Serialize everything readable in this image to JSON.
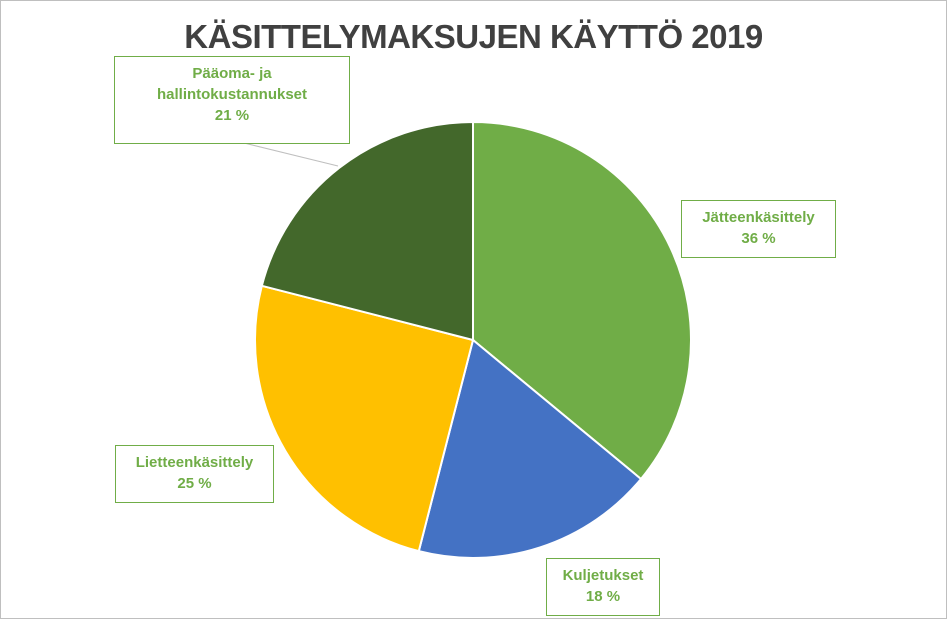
{
  "chart_data": {
    "type": "pie",
    "title": "KÄSITTELYMAKSUJEN KÄYTTÖ 2019",
    "slices": [
      {
        "name": "Jätteenkäsittely",
        "value": 36,
        "label": "36 %",
        "color": "#70ad47"
      },
      {
        "name": "Kuljetukset",
        "value": 18,
        "label": "18 %",
        "color": "#4472c4"
      },
      {
        "name": "Lietteenkäsittely",
        "value": 25,
        "label": "25 %",
        "color": "#ffc000"
      },
      {
        "name_lines": [
          "Pääoma- ja",
          "hallintokustannukset"
        ],
        "name": "Pääoma- ja hallintokustannukset",
        "value": 21,
        "label": "21 %",
        "color": "#43682b"
      }
    ],
    "label_color": "#70ad47",
    "legend": "none"
  }
}
